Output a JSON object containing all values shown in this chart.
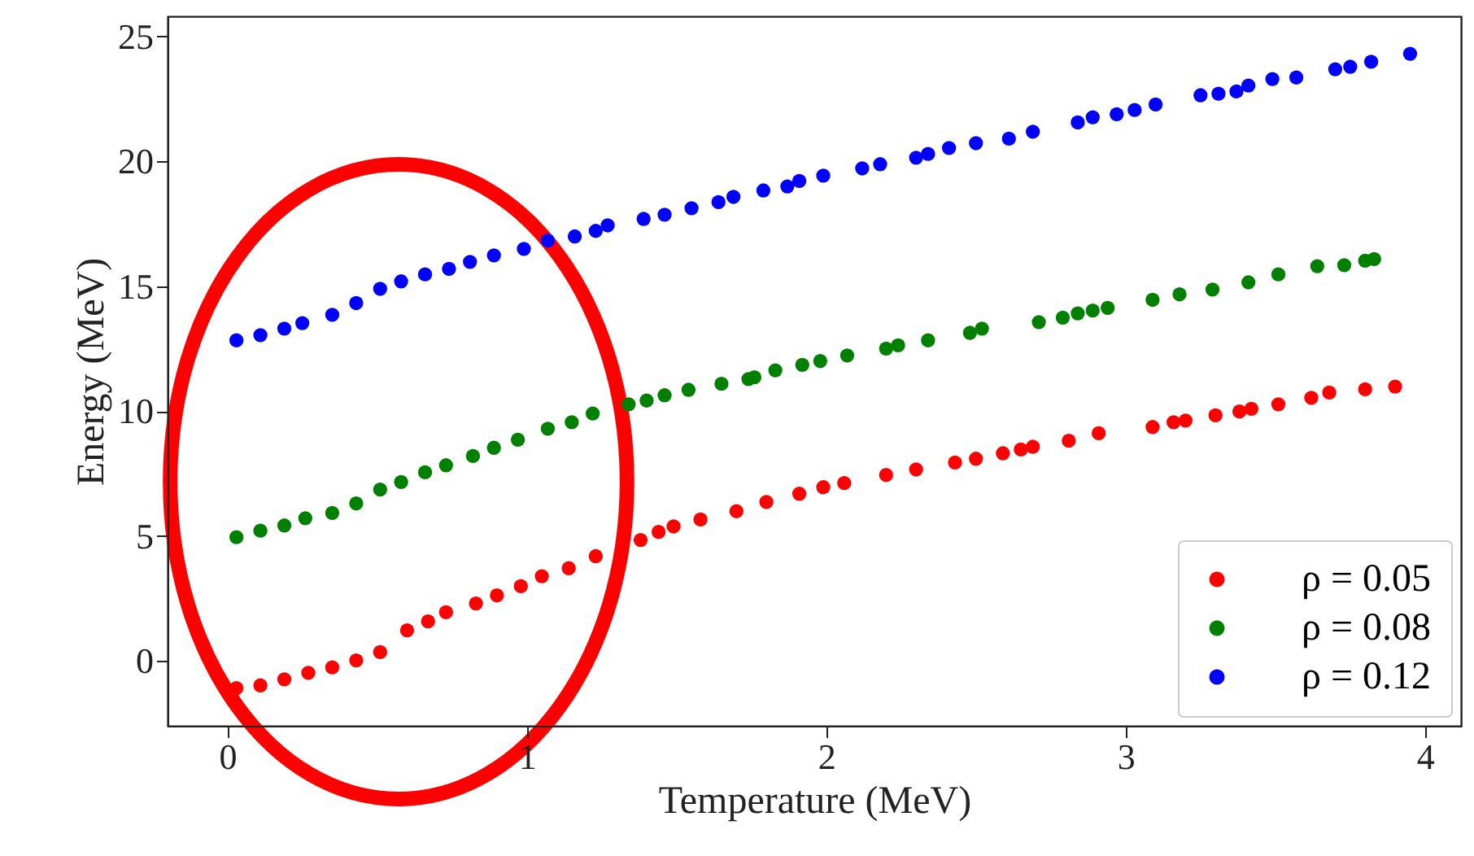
{
  "chart_data": {
    "type": "scatter",
    "xlabel": "Temperature (MeV)",
    "ylabel": "Energy (MeV)",
    "xlim": [
      -0.2,
      4.12
    ],
    "ylim": [
      -2.6,
      25.8
    ],
    "xticks": [
      0,
      1,
      2,
      3,
      4
    ],
    "yticks": [
      0,
      5,
      10,
      15,
      20,
      25
    ],
    "grid": false,
    "legend": "bottom right",
    "marker": "circle",
    "series": [
      {
        "name": "ρ = 0.05",
        "color": "#ff0000",
        "x": [
          0.03,
          0.11,
          0.19,
          0.27,
          0.35,
          0.43,
          0.51,
          0.6,
          0.67,
          0.73,
          0.83,
          0.9,
          0.98,
          1.05,
          1.14,
          1.23,
          1.38,
          1.44,
          1.49,
          1.58,
          1.7,
          1.8,
          1.91,
          1.99,
          2.06,
          2.2,
          2.3,
          2.43,
          2.5,
          2.59,
          2.65,
          2.69,
          2.81,
          2.91,
          3.09,
          3.16,
          3.2,
          3.3,
          3.38,
          3.42,
          3.51,
          3.62,
          3.68,
          3.8,
          3.9
        ],
        "values": [
          -1.09,
          -0.98,
          -0.74,
          -0.48,
          -0.26,
          0.02,
          0.35,
          1.22,
          1.58,
          1.95,
          2.3,
          2.62,
          2.99,
          3.39,
          3.71,
          4.19,
          4.84,
          5.16,
          5.38,
          5.66,
          5.99,
          6.36,
          6.69,
          6.95,
          7.12,
          7.44,
          7.66,
          7.94,
          8.09,
          8.31,
          8.46,
          8.57,
          8.81,
          9.11,
          9.36,
          9.55,
          9.62,
          9.83,
          9.98,
          10.09,
          10.27,
          10.53,
          10.74,
          10.87,
          10.98
        ]
      },
      {
        "name": "ρ = 0.08",
        "color": "#008000",
        "x": [
          0.03,
          0.11,
          0.19,
          0.26,
          0.35,
          0.43,
          0.51,
          0.58,
          0.66,
          0.73,
          0.82,
          0.89,
          0.97,
          1.07,
          1.15,
          1.22,
          1.34,
          1.4,
          1.46,
          1.54,
          1.65,
          1.74,
          1.76,
          1.83,
          1.92,
          1.98,
          2.07,
          2.2,
          2.24,
          2.34,
          2.48,
          2.52,
          2.71,
          2.79,
          2.84,
          2.89,
          2.94,
          3.09,
          3.18,
          3.29,
          3.41,
          3.51,
          3.64,
          3.73,
          3.8,
          3.83
        ],
        "values": [
          4.95,
          5.21,
          5.42,
          5.71,
          5.92,
          6.3,
          6.86,
          7.16,
          7.55,
          7.83,
          8.2,
          8.53,
          8.85,
          9.29,
          9.55,
          9.9,
          10.27,
          10.42,
          10.63,
          10.85,
          11.09,
          11.28,
          11.35,
          11.63,
          11.85,
          12.0,
          12.22,
          12.5,
          12.63,
          12.83,
          13.13,
          13.3,
          13.56,
          13.74,
          13.91,
          14.02,
          14.13,
          14.45,
          14.67,
          14.86,
          15.15,
          15.47,
          15.8,
          15.84,
          16.02,
          16.08
        ]
      },
      {
        "name": "ρ = 0.12",
        "color": "#0000ff",
        "x": [
          0.03,
          0.11,
          0.19,
          0.25,
          0.35,
          0.43,
          0.51,
          0.58,
          0.66,
          0.74,
          0.81,
          0.89,
          0.99,
          1.07,
          1.16,
          1.23,
          1.27,
          1.39,
          1.46,
          1.55,
          1.64,
          1.69,
          1.79,
          1.87,
          1.91,
          1.99,
          2.12,
          2.18,
          2.3,
          2.34,
          2.41,
          2.5,
          2.61,
          2.69,
          2.84,
          2.89,
          2.97,
          3.03,
          3.1,
          3.25,
          3.31,
          3.37,
          3.41,
          3.49,
          3.57,
          3.7,
          3.75,
          3.82,
          3.95
        ],
        "values": [
          12.83,
          13.04,
          13.3,
          13.52,
          13.85,
          14.32,
          14.89,
          15.19,
          15.47,
          15.69,
          15.97,
          16.23,
          16.49,
          16.82,
          16.99,
          17.21,
          17.43,
          17.69,
          17.86,
          18.12,
          18.36,
          18.57,
          18.83,
          18.99,
          19.21,
          19.42,
          19.71,
          19.88,
          20.14,
          20.29,
          20.53,
          20.72,
          20.9,
          21.18,
          21.55,
          21.76,
          21.88,
          22.05,
          22.27,
          22.64,
          22.7,
          22.79,
          23.03,
          23.29,
          23.35,
          23.68,
          23.78,
          23.98,
          24.3
        ]
      }
    ]
  }
}
